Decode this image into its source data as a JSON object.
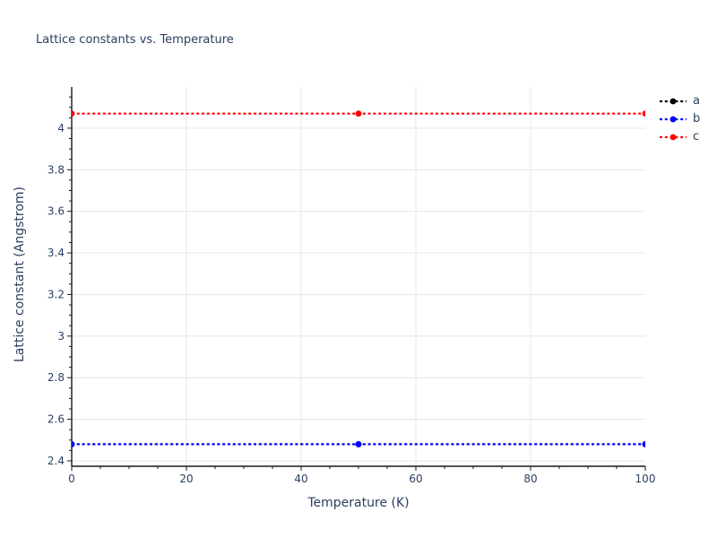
{
  "page": {
    "background": "#ffffff"
  },
  "chart_data": {
    "type": "line",
    "title": "Lattice constants vs. Temperature",
    "xlabel": "Temperature (K)",
    "ylabel": "Lattice constant (Angstrom)",
    "x": [
      0,
      50,
      100
    ],
    "series": [
      {
        "name": "a",
        "color": "#000000",
        "dash": "dot",
        "marker": "circle",
        "values": [
          2.48,
          2.48,
          2.48
        ]
      },
      {
        "name": "b",
        "color": "#0000ff",
        "dash": "dot",
        "marker": "circle",
        "values": [
          2.48,
          2.48,
          2.48
        ]
      },
      {
        "name": "c",
        "color": "#ff0000",
        "dash": "dot",
        "marker": "circle",
        "values": [
          4.07,
          4.07,
          4.07
        ]
      }
    ],
    "xlim": [
      0,
      100
    ],
    "ylim": [
      2.374,
      4.198
    ],
    "xticks": {
      "major": [
        0,
        20,
        40,
        60,
        80,
        100
      ],
      "labels": [
        "0",
        "20",
        "40",
        "60",
        "80",
        "100"
      ],
      "minor_step": 5
    },
    "yticks": {
      "major": [
        2.4,
        2.6,
        2.8,
        3.0,
        3.2,
        3.4,
        3.6,
        3.8,
        4.0
      ],
      "labels": [
        "2.4",
        "2.6",
        "2.8",
        "3",
        "3.2",
        "3.4",
        "3.6",
        "3.8",
        "4"
      ],
      "minor_step": 0.05
    },
    "grid": true,
    "legend_position": "top-right",
    "colors": {
      "text": "#2a3f5f",
      "grid": "#e9e9e9",
      "axis": "#1a1a1a"
    }
  }
}
